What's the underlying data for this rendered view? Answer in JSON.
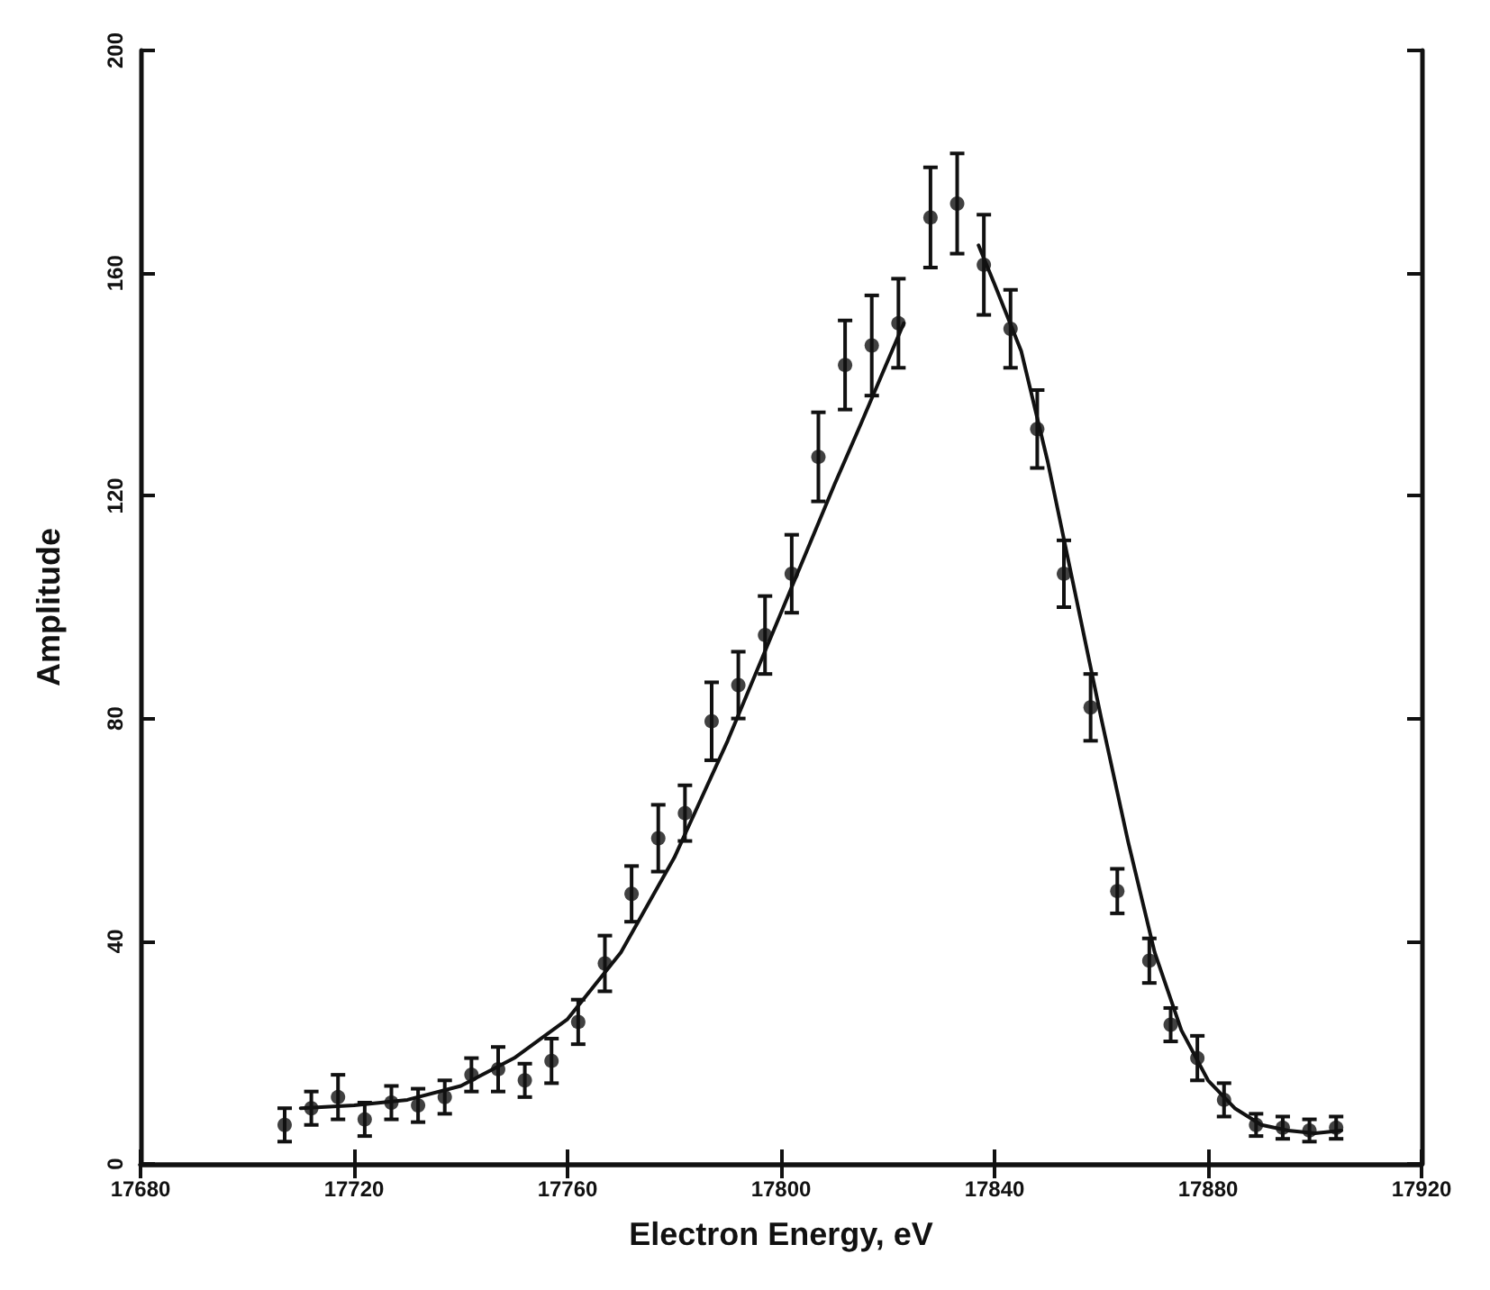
{
  "chart_data": {
    "type": "scatter",
    "xlabel": "Electron Energy, eV",
    "ylabel": "Amplitude",
    "xlim": [
      17680,
      17920
    ],
    "xticks": [
      17680,
      17720,
      17760,
      17800,
      17840,
      17880,
      17920
    ],
    "ylim": [
      0,
      200
    ],
    "yticks": [
      0,
      40,
      80,
      120,
      160,
      200
    ],
    "grid": false,
    "series": [
      {
        "marker": "circle",
        "color": "#111111",
        "x": [
          17707,
          17712,
          17717,
          17722,
          17727,
          17732,
          17737,
          17742,
          17747,
          17752,
          17757,
          17762,
          17767,
          17772,
          17777,
          17782,
          17787,
          17792,
          17797,
          17802,
          17807,
          17812,
          17817,
          17822,
          17828,
          17833,
          17838,
          17843,
          17848,
          17853,
          17858,
          17863,
          17869,
          17873,
          17878,
          17883,
          17889,
          17894,
          17899,
          17904
        ],
        "values": [
          7,
          10,
          12,
          8,
          11,
          10.5,
          12,
          16,
          17,
          15,
          18.5,
          25.5,
          36,
          48.5,
          58.5,
          63,
          79.5,
          86,
          95,
          106,
          127,
          143.5,
          147,
          151,
          170,
          172.5,
          161.5,
          150,
          132,
          106,
          82,
          49,
          36.5,
          25,
          19,
          11.5,
          7,
          6.5,
          6,
          6.5
        ],
        "errors": [
          3,
          3,
          4,
          3,
          3,
          3,
          3,
          3,
          4,
          3,
          4,
          4,
          5,
          5,
          6,
          5,
          7,
          6,
          7,
          7,
          8,
          8,
          9,
          8,
          9,
          9,
          9,
          7,
          7,
          6,
          6,
          4,
          4,
          3,
          4,
          3,
          2,
          2,
          2,
          2
        ]
      },
      {
        "type": "line",
        "marker": "none",
        "line_style": "solid",
        "color": "#111111",
        "x": [
          17710,
          17720,
          17730,
          17740,
          17750,
          17760,
          17770,
          17780,
          17790,
          17800,
          17810,
          17815,
          17823,
          17830,
          17837,
          17840,
          17845,
          17850,
          17855,
          17860,
          17865,
          17870,
          17875,
          17880,
          17885,
          17890,
          17895,
          17900,
          17905
        ],
        "values": [
          10,
          10.5,
          11.5,
          14,
          19,
          26,
          38,
          55,
          76,
          99,
          122,
          133,
          151,
          null,
          165,
          158,
          146,
          126,
          103,
          80,
          58,
          38,
          24,
          15,
          10,
          7,
          6,
          5.5,
          6
        ]
      }
    ]
  }
}
